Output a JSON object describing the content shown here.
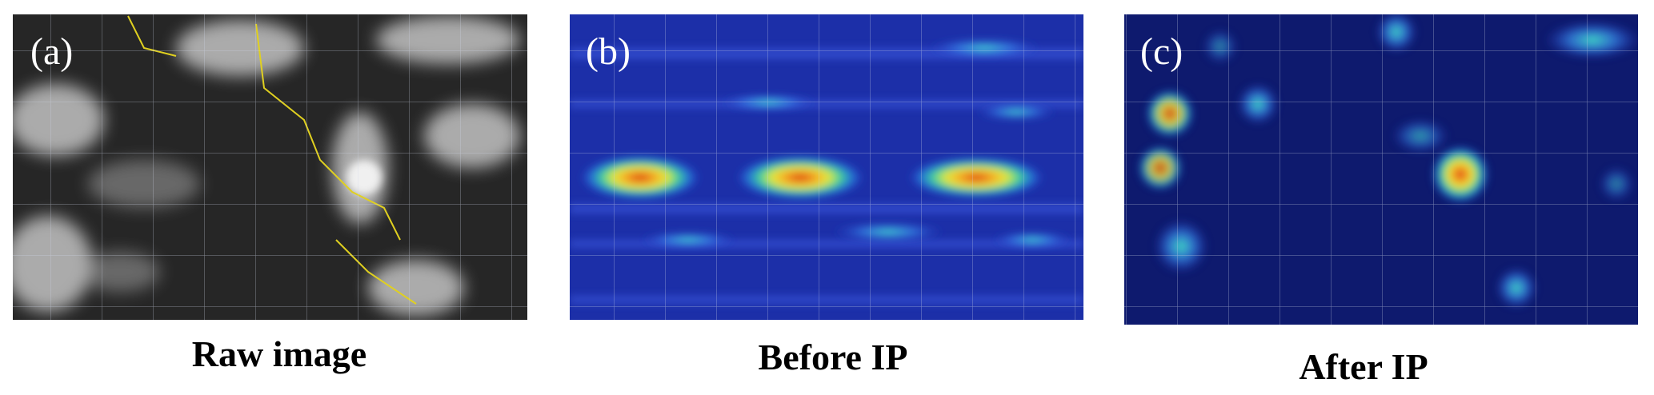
{
  "panels": [
    {
      "label": "(a)",
      "caption": "Raw image"
    },
    {
      "label": "(b)",
      "caption": "Before IP"
    },
    {
      "label": "(c)",
      "caption": "After IP"
    }
  ]
}
